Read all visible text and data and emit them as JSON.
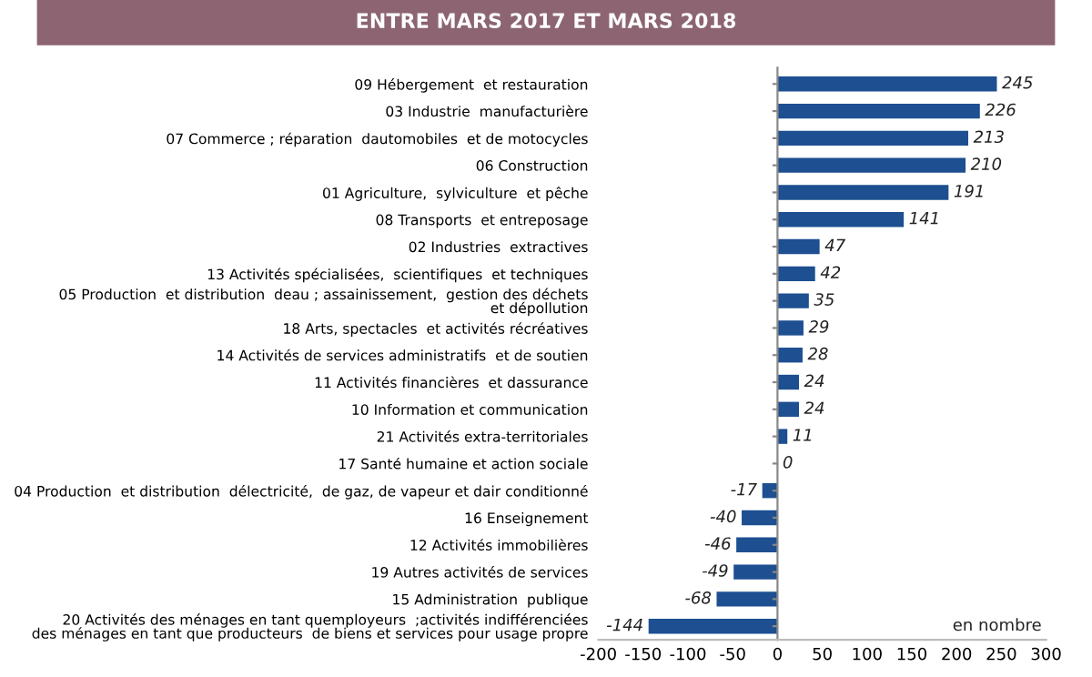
{
  "chart_data": {
    "type": "bar",
    "orientation": "horizontal",
    "title": "ENTRE MARS 2017 ET MARS 2018",
    "categories": [
      "09 Hébergement  et restauration",
      "03 Industrie  manufacturière",
      "07 Commerce ; réparation  dautomobiles  et de motocycles",
      "06 Construction",
      "01 Agriculture,  sylviculture  et pêche",
      "08 Transports  et entreposage",
      "02 Industries  extractives",
      "13 Activités spécialisées,  scientifiques  et techniques",
      "05 Production  et distribution  deau ; assainissement,  gestion des déchets\net dépollution",
      "18 Arts, spectacles  et activités récréatives",
      "14 Activités de services administratifs  et de soutien",
      "11 Activités financières  et dassurance",
      "10 Information et communication",
      "21 Activités extra-territoriales",
      "17 Santé humaine et action sociale",
      "04 Production  et distribution  délectricité,  de gaz, de vapeur et dair conditionné",
      "16 Enseignement",
      "12 Activités immobilières",
      "19 Autres activités de services",
      "15 Administration  publique",
      "20 Activités des ménages en tant quemployeurs  ;activités indifférenciées\ndes ménages en tant que producteurs  de biens et services pour usage propre"
    ],
    "values": [
      245,
      226,
      213,
      210,
      191,
      141,
      47,
      42,
      35,
      29,
      28,
      24,
      24,
      11,
      0,
      -17,
      -40,
      -46,
      -49,
      -68,
      -144
    ],
    "color": "#1d4f91",
    "data_labels": true,
    "xlim": [
      -200,
      300
    ],
    "xticks": [
      -200,
      -150,
      -100,
      -50,
      0,
      50,
      100,
      150,
      200,
      250,
      300
    ],
    "legend": false,
    "annotations": [
      "en nombre"
    ]
  }
}
